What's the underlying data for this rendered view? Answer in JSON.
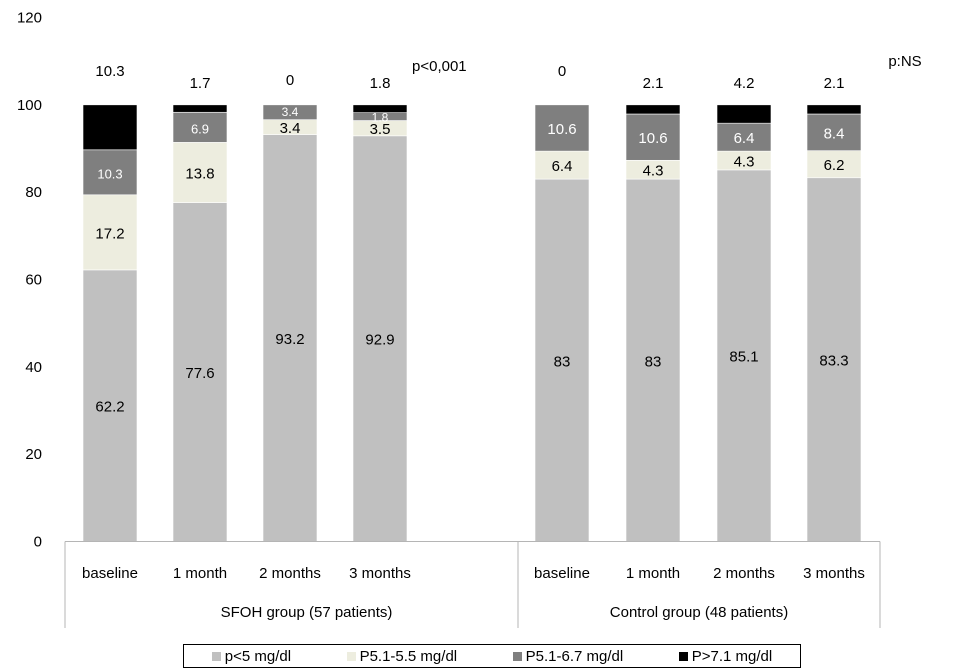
{
  "chart_data": {
    "type": "bar",
    "stacked": true,
    "title": "",
    "xlabel": "",
    "ylabel": "",
    "ylim": [
      0,
      120
    ],
    "yticks": [
      0,
      20,
      40,
      60,
      80,
      100,
      120
    ],
    "grid": false,
    "legend_position": "bottom",
    "groups": [
      {
        "label": "SFOH group (57 patients)",
        "annotation": "p<0,001",
        "categories": [
          "baseline",
          "1 month",
          "2 months",
          "3 months"
        ]
      },
      {
        "label": "Control  group (48 patients)",
        "annotation": "p:NS",
        "categories": [
          "baseline",
          "1 month",
          "2 months",
          "3 months"
        ]
      }
    ],
    "series": [
      {
        "name": "p<5 mg/dl",
        "color": "#c0c0c0",
        "label_color": "#000000",
        "values": [
          62.2,
          77.6,
          93.2,
          92.9,
          83,
          83,
          85.1,
          83.3
        ],
        "labels": [
          "62.2",
          "77.6",
          "93.2",
          "92.9",
          "83",
          "83",
          "85.1",
          "83.3"
        ]
      },
      {
        "name": "P5.1-5.5 mg/dl",
        "color": "#ededdf",
        "label_color": "#000000",
        "values": [
          17.2,
          13.8,
          3.4,
          3.5,
          6.4,
          4.3,
          4.3,
          6.2
        ],
        "labels": [
          "17.2",
          "13.8",
          "3.4",
          "3.5",
          "6.4",
          "4.3",
          "4.3",
          "6.2"
        ]
      },
      {
        "name": "P5.1-6.7 mg/dl",
        "color": "#7f7f7f",
        "label_color": "#ffffff",
        "values": [
          10.3,
          6.9,
          3.4,
          1.8,
          10.6,
          10.6,
          6.4,
          8.4
        ],
        "labels": [
          "10.3",
          "6.9",
          "3.4",
          "1.8",
          "10.6",
          "10.6",
          "6.4",
          "8.4"
        ]
      },
      {
        "name": "P>7.1 mg/dl",
        "color": "#000000",
        "label_color": "#000000",
        "values": [
          10.3,
          1.7,
          0,
          1.8,
          0,
          2.1,
          4.2,
          2.1
        ],
        "labels": [
          "10.3",
          "1.7",
          "0",
          "1.8",
          "0",
          "2.1",
          "4.2",
          "2.1"
        ]
      }
    ]
  }
}
